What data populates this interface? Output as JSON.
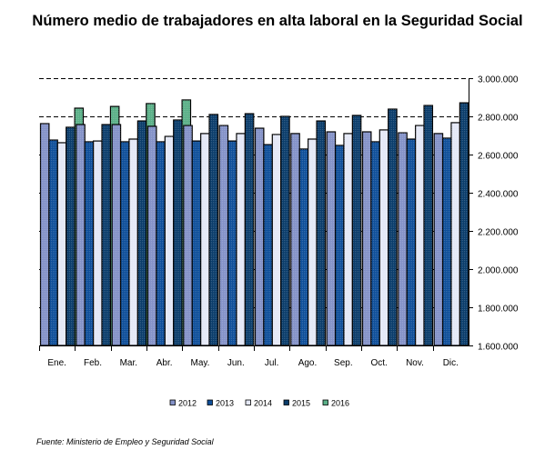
{
  "chart_data": {
    "type": "bar",
    "title": "Número medio de trabajadores en alta laboral en la Seguridad Social",
    "xlabel": "",
    "ylabel": "",
    "ylim": [
      1600000,
      3000000
    ],
    "yticks": [
      1600000,
      1800000,
      2000000,
      2200000,
      2400000,
      2600000,
      2800000,
      3000000
    ],
    "ytick_labels": [
      "1.600.000",
      "1.800.000",
      "2.000.000",
      "2.200.000",
      "2.400.000",
      "2.600.000",
      "2.800.000",
      "3.000.000"
    ],
    "y_axis_side": "right",
    "grid": "dashed horizontal",
    "legend_position": "bottom",
    "categories": [
      "Ene.",
      "Feb.",
      "Mar.",
      "Abr.",
      "May.",
      "Jun.",
      "Jul.",
      "Ago.",
      "Sep.",
      "Oct.",
      "Nov.",
      "Dic."
    ],
    "series": [
      {
        "name": "2012",
        "color": "#8492c8",
        "values": [
          2762000,
          2757000,
          2757000,
          2748000,
          2752000,
          2752000,
          2738000,
          2710000,
          2719000,
          2719000,
          2714000,
          2710000
        ]
      },
      {
        "name": "2013",
        "color": "#0f4f9a",
        "values": [
          2676000,
          2667000,
          2667000,
          2667000,
          2671000,
          2671000,
          2652000,
          2629000,
          2648000,
          2667000,
          2681000,
          2686000
        ]
      },
      {
        "name": "2014",
        "color": "#e4e8f6",
        "values": [
          2662000,
          2671000,
          2681000,
          2695000,
          2710000,
          2710000,
          2705000,
          2681000,
          2710000,
          2729000,
          2752000,
          2767000
        ]
      },
      {
        "name": "2015",
        "color": "#0b3d6b",
        "values": [
          2743000,
          2757000,
          2776000,
          2781000,
          2810000,
          2814000,
          2800000,
          2776000,
          2805000,
          2838000,
          2857000,
          2871000
        ]
      },
      {
        "name": "2016",
        "color": "#5bb088",
        "values": [
          2843000,
          2852000,
          2867000,
          2886000,
          null,
          null,
          null,
          null,
          null,
          null,
          null,
          null
        ]
      }
    ],
    "source": "Fuente: Ministerio de Empleo y Seguridad Social"
  }
}
